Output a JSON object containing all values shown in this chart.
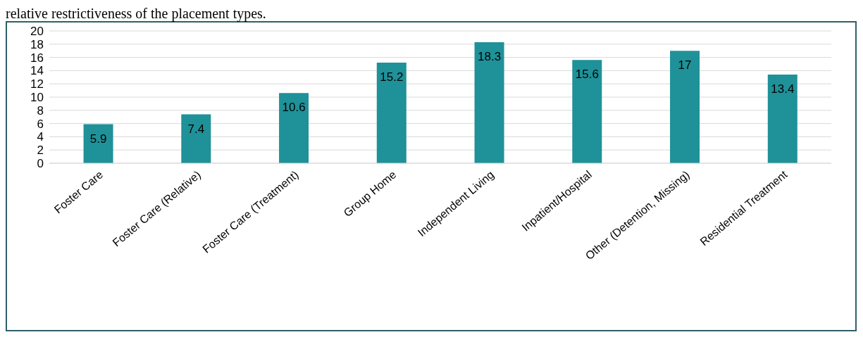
{
  "chart_data": {
    "type": "bar",
    "categories": [
      "Foster Care",
      "Foster Care (Relative)",
      "Foster Care (Treatment)",
      "Group Home",
      "Independent Living",
      "Inpatient/Hospital",
      "Other (Detention, Missing)",
      "Residential Treatment"
    ],
    "values": [
      5.9,
      7.4,
      10.6,
      15.2,
      18.3,
      15.6,
      17,
      13.4
    ],
    "color": "#1f9199",
    "ylim": [
      0,
      20
    ],
    "yticks": [
      0,
      2,
      4,
      6,
      8,
      10,
      12,
      14,
      16,
      18,
      20
    ],
    "grid": "y",
    "data_labels": true,
    "annotations": [
      "relative restrictiveness of the placement types."
    ]
  }
}
